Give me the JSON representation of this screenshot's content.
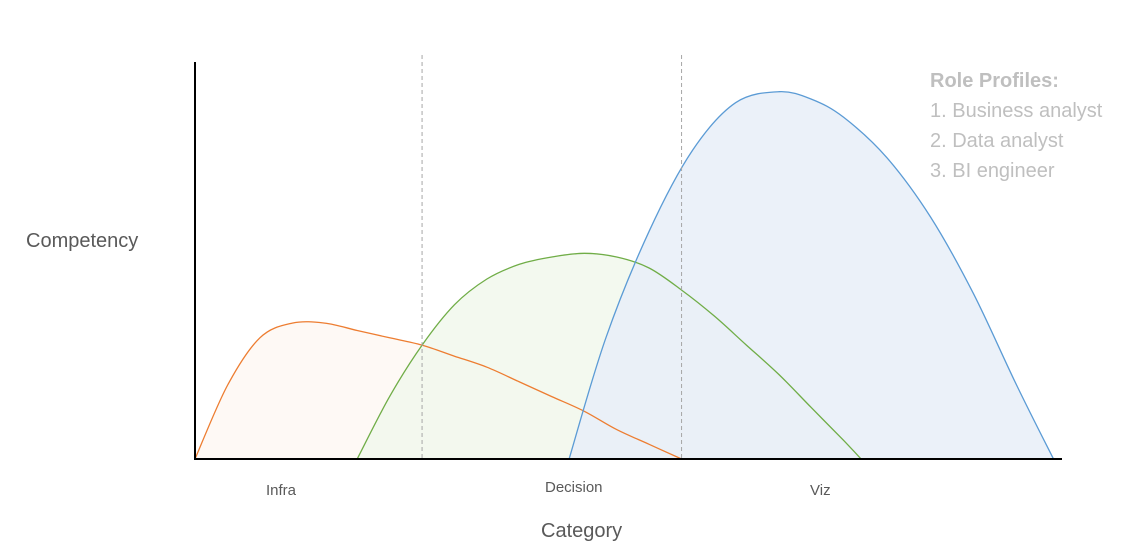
{
  "chart_data": {
    "type": "area",
    "title": "",
    "xlabel": "Category",
    "ylabel": "Competency",
    "categories": [
      "Infra",
      "Decision",
      "Viz"
    ],
    "grid": false,
    "legend": {
      "title": "Role Profiles:",
      "placement": "top-right",
      "items": [
        "1. Business analyst",
        "2. Data analyst",
        "3. BI engineer"
      ]
    },
    "series": [
      {
        "name": "1. Business analyst",
        "color": "#ed7d31",
        "fill": "#fef8f3",
        "x": [
          0,
          0.15,
          0.3,
          0.45,
          0.6,
          0.75,
          0.9,
          1.05,
          1.2,
          1.35,
          1.5,
          1.65,
          1.8,
          1.95,
          2.1,
          2.25
        ],
        "y": [
          0.0,
          0.2,
          0.33,
          0.37,
          0.37,
          0.35,
          0.33,
          0.31,
          0.28,
          0.25,
          0.21,
          0.17,
          0.13,
          0.08,
          0.04,
          0.0
        ]
      },
      {
        "name": "2. Data analyst",
        "color": "#70ad47",
        "fill": "#f1f8ec",
        "x": [
          0.75,
          0.9,
          1.05,
          1.2,
          1.35,
          1.5,
          1.65,
          1.8,
          1.95,
          2.1,
          2.25,
          2.4,
          2.55,
          2.7,
          2.85,
          3.0,
          3.08
        ],
        "y": [
          0.0,
          0.17,
          0.31,
          0.42,
          0.49,
          0.53,
          0.55,
          0.56,
          0.55,
          0.52,
          0.46,
          0.39,
          0.31,
          0.23,
          0.14,
          0.05,
          0.0
        ]
      },
      {
        "name": "3. BI engineer",
        "color": "#5b9bd5",
        "fill": "#e7eef8",
        "x": [
          1.73,
          1.9,
          2.1,
          2.3,
          2.5,
          2.7,
          2.85,
          3.0,
          3.2,
          3.4,
          3.6,
          3.8,
          3.97
        ],
        "y": [
          0.0,
          0.33,
          0.62,
          0.84,
          0.97,
          1.0,
          0.98,
          0.93,
          0.82,
          0.66,
          0.45,
          0.2,
          0.0
        ]
      }
    ],
    "dividers": [
      1.05,
      2.25
    ],
    "xlim": [
      0,
      4.0
    ],
    "ylim": [
      0,
      1.1
    ]
  }
}
